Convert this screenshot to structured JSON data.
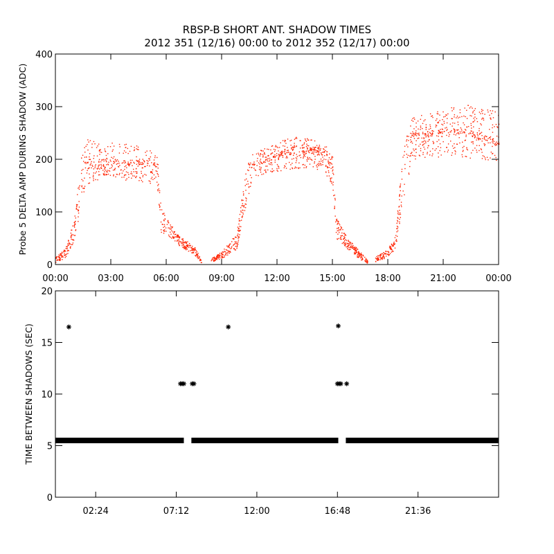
{
  "figure": {
    "title": "RBSP-B SHORT ANT. SHADOW TIMES",
    "subtitle": "2012 351 (12/16) 00:00 to 2012 352 (12/17) 00:00"
  },
  "colors": {
    "background": "#ffffff",
    "axes": "#000000",
    "top_series": "#ff2200",
    "bottom_series": "#000000"
  },
  "chart_data": [
    {
      "type": "scatter",
      "ylabel": "Probe 5 DELTA AMP DURING SHADOW (ADC)",
      "xlabel": "",
      "x_unit": "hours since 2012-12-16 00:00",
      "xlim": [
        0,
        24
      ],
      "ylim": [
        0,
        400
      ],
      "x_ticks": [
        0,
        3,
        6,
        9,
        12,
        15,
        18,
        21,
        24
      ],
      "x_tick_labels": [
        "00:00",
        "03:00",
        "06:00",
        "09:00",
        "12:00",
        "15:00",
        "18:00",
        "21:00",
        "00:00"
      ],
      "y_ticks": [
        0,
        100,
        200,
        300,
        400
      ],
      "y_tick_labels": [
        "0",
        "100",
        "200",
        "300",
        "400"
      ],
      "grid": false,
      "legend": "none",
      "series": [
        {
          "marker": "dot",
          "envelope": [
            {
              "x": 0.0,
              "low": 5,
              "high": 15
            },
            {
              "x": 0.5,
              "low": 12,
              "high": 30
            },
            {
              "x": 1.0,
              "low": 40,
              "high": 90
            },
            {
              "x": 1.4,
              "low": 110,
              "high": 210
            },
            {
              "x": 1.6,
              "low": 150,
              "high": 240
            },
            {
              "x": 2.0,
              "low": 160,
              "high": 235
            },
            {
              "x": 3.0,
              "low": 165,
              "high": 232
            },
            {
              "x": 4.0,
              "low": 160,
              "high": 230
            },
            {
              "x": 5.0,
              "low": 155,
              "high": 222
            },
            {
              "x": 5.5,
              "low": 150,
              "high": 210
            },
            {
              "x": 5.7,
              "low": 60,
              "high": 110
            },
            {
              "x": 6.0,
              "low": 55,
              "high": 95
            },
            {
              "x": 6.5,
              "low": 40,
              "high": 60
            },
            {
              "x": 7.5,
              "low": 20,
              "high": 35
            },
            {
              "x": 7.9,
              "low": 3,
              "high": 10
            },
            {
              "x": 8.4,
              "low": 5,
              "high": 12
            },
            {
              "x": 9.0,
              "low": 12,
              "high": 25
            },
            {
              "x": 9.8,
              "low": 30,
              "high": 60
            },
            {
              "x": 10.3,
              "low": 110,
              "high": 180
            },
            {
              "x": 10.6,
              "low": 160,
              "high": 210
            },
            {
              "x": 11.5,
              "low": 175,
              "high": 225
            },
            {
              "x": 12.5,
              "low": 180,
              "high": 240
            },
            {
              "x": 13.5,
              "low": 185,
              "high": 245
            },
            {
              "x": 14.5,
              "low": 180,
              "high": 230
            },
            {
              "x": 15.0,
              "low": 150,
              "high": 210
            },
            {
              "x": 15.2,
              "low": 50,
              "high": 90
            },
            {
              "x": 15.8,
              "low": 30,
              "high": 50
            },
            {
              "x": 16.5,
              "low": 10,
              "high": 25
            },
            {
              "x": 16.9,
              "low": 2,
              "high": 8
            },
            {
              "x": 17.3,
              "low": 5,
              "high": 15
            },
            {
              "x": 18.0,
              "low": 15,
              "high": 30
            },
            {
              "x": 18.4,
              "low": 30,
              "high": 60
            },
            {
              "x": 18.8,
              "low": 120,
              "high": 220
            },
            {
              "x": 19.3,
              "low": 200,
              "high": 280
            },
            {
              "x": 20.5,
              "low": 205,
              "high": 290
            },
            {
              "x": 22.0,
              "low": 205,
              "high": 305
            },
            {
              "x": 23.0,
              "low": 200,
              "high": 300
            },
            {
              "x": 24.0,
              "low": 190,
              "high": 290
            }
          ],
          "centre_band": [
            {
              "x": 1.6,
              "y": 190
            },
            {
              "x": 3.0,
              "y": 185
            },
            {
              "x": 4.0,
              "y": 195
            },
            {
              "x": 5.5,
              "y": 190
            },
            {
              "x": 10.6,
              "y": 190
            },
            {
              "x": 12.5,
              "y": 215
            },
            {
              "x": 14.5,
              "y": 220
            },
            {
              "x": 19.3,
              "y": 245
            },
            {
              "x": 22.0,
              "y": 255
            },
            {
              "x": 24.0,
              "y": 230
            }
          ]
        }
      ]
    },
    {
      "type": "scatter",
      "ylabel": "TIME BETWEEN SHADOWS (SEC)",
      "xlabel": "",
      "x_unit": "hours since 2012-12-16 00:00",
      "xlim": [
        0,
        26.4
      ],
      "ylim": [
        0,
        20
      ],
      "x_ticks": [
        2.4,
        7.2,
        12.0,
        16.8,
        21.6
      ],
      "x_tick_labels": [
        "02:24",
        "07:12",
        "12:00",
        "16:48",
        "21:36"
      ],
      "y_ticks": [
        0,
        5,
        10,
        15,
        20
      ],
      "y_tick_labels": [
        "0",
        "5",
        "10",
        "15",
        "20"
      ],
      "grid": false,
      "legend": "none",
      "series": [
        {
          "marker": "asterisk",
          "baseline_value": 5.5,
          "baseline_ranges": [
            [
              0.0,
              7.65
            ],
            [
              8.1,
              16.85
            ],
            [
              17.3,
              26.4
            ]
          ],
          "points": [
            {
              "x": 0.8,
              "y": 16.5
            },
            {
              "x": 7.45,
              "y": 11.0
            },
            {
              "x": 7.55,
              "y": 11.0
            },
            {
              "x": 7.65,
              "y": 11.0
            },
            {
              "x": 8.15,
              "y": 11.0
            },
            {
              "x": 8.25,
              "y": 11.0
            },
            {
              "x": 10.3,
              "y": 16.5
            },
            {
              "x": 16.85,
              "y": 16.6
            },
            {
              "x": 16.8,
              "y": 11.0
            },
            {
              "x": 16.9,
              "y": 11.0
            },
            {
              "x": 17.0,
              "y": 11.0
            },
            {
              "x": 17.35,
              "y": 11.0
            }
          ]
        }
      ]
    }
  ]
}
